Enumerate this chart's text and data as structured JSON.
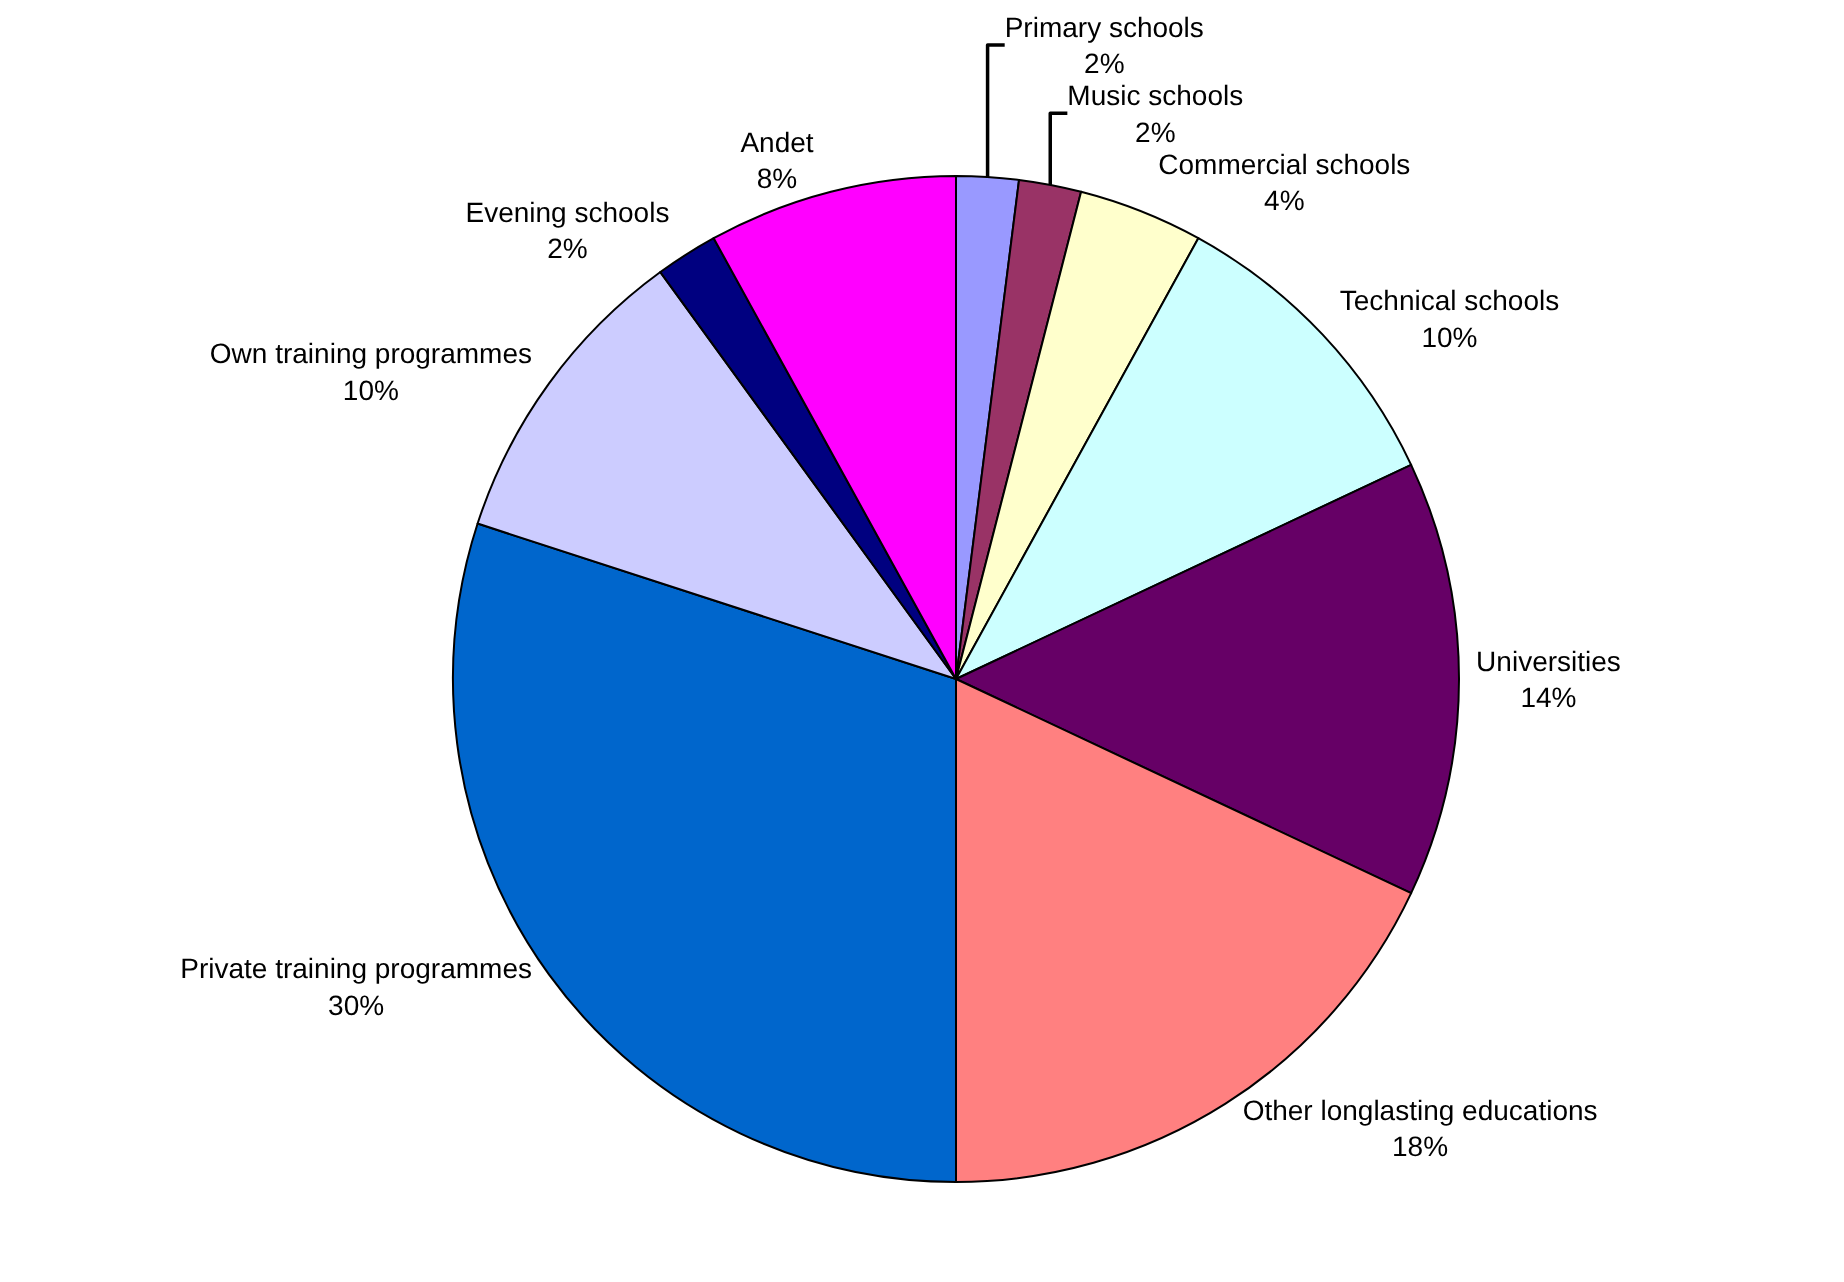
{
  "chart_data": {
    "type": "pie",
    "categories": [
      "Primary schools",
      "Music schools",
      "Commercial schools",
      "Technical schools",
      "Universities",
      "Other longlasting educations",
      "Private training programmes",
      "Own training programmes",
      "Evening schools",
      "Andet"
    ],
    "values": [
      2,
      2,
      4,
      10,
      14,
      18,
      30,
      10,
      2,
      8
    ],
    "value_labels": [
      "2%",
      "2%",
      "4%",
      "10%",
      "14%",
      "18%",
      "30%",
      "10%",
      "2%",
      "8%"
    ],
    "colors": [
      "#9999ff",
      "#993366",
      "#ffffcc",
      "#ccffff",
      "#660066",
      "#ff8080",
      "#0066cc",
      "#ccccff",
      "#000080",
      "#ff00ff"
    ],
    "legend": false
  }
}
